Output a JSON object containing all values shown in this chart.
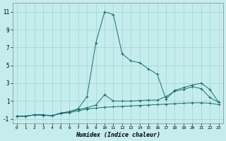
{
  "xlabel": "Humidex (Indice chaleur)",
  "xlim": [
    -0.5,
    23.5
  ],
  "ylim": [
    -1.5,
    12
  ],
  "yticks": [
    -1,
    1,
    3,
    5,
    7,
    9,
    11
  ],
  "xticks": [
    0,
    1,
    2,
    3,
    4,
    5,
    6,
    7,
    8,
    9,
    10,
    11,
    12,
    13,
    14,
    15,
    16,
    17,
    18,
    19,
    20,
    21,
    22,
    23
  ],
  "bg_color": "#c5eded",
  "line_color": "#1a6b6b",
  "grid_color": "#9fd4d4",
  "series": [
    {
      "x": [
        0,
        1,
        2,
        3,
        4,
        5,
        6,
        7,
        8,
        9,
        10,
        11,
        12,
        13,
        14,
        15,
        16,
        17,
        18,
        19,
        20,
        21,
        22,
        23
      ],
      "y": [
        -0.7,
        -0.7,
        -0.55,
        -0.6,
        -0.65,
        -0.4,
        -0.3,
        -0.1,
        0.1,
        0.2,
        0.3,
        0.35,
        0.4,
        0.45,
        0.5,
        0.55,
        0.6,
        0.65,
        0.7,
        0.75,
        0.8,
        0.8,
        0.75,
        0.6
      ]
    },
    {
      "x": [
        0,
        1,
        2,
        3,
        4,
        5,
        6,
        7,
        8,
        9,
        10,
        11,
        12,
        13,
        14,
        15,
        16,
        17,
        18,
        19,
        20,
        21,
        22,
        23
      ],
      "y": [
        -0.7,
        -0.7,
        -0.55,
        -0.55,
        -0.65,
        -0.35,
        -0.2,
        0.05,
        0.25,
        0.55,
        1.7,
        1.0,
        1.0,
        1.0,
        1.05,
        1.1,
        1.1,
        1.5,
        2.1,
        2.3,
        2.6,
        2.4,
        1.4,
        0.85
      ]
    },
    {
      "x": [
        0,
        1,
        2,
        3,
        4,
        5,
        6,
        7,
        8,
        9,
        10,
        11,
        12,
        13,
        14,
        15,
        16,
        17,
        18,
        19,
        20,
        21,
        22,
        23
      ],
      "y": [
        -0.7,
        -0.7,
        -0.55,
        -0.55,
        -0.65,
        -0.35,
        -0.2,
        0.15,
        1.5,
        7.5,
        11.0,
        10.7,
        6.3,
        5.5,
        5.3,
        4.6,
        4.0,
        1.2,
        2.2,
        2.5,
        2.8,
        3.0,
        2.3,
        0.85
      ]
    }
  ]
}
